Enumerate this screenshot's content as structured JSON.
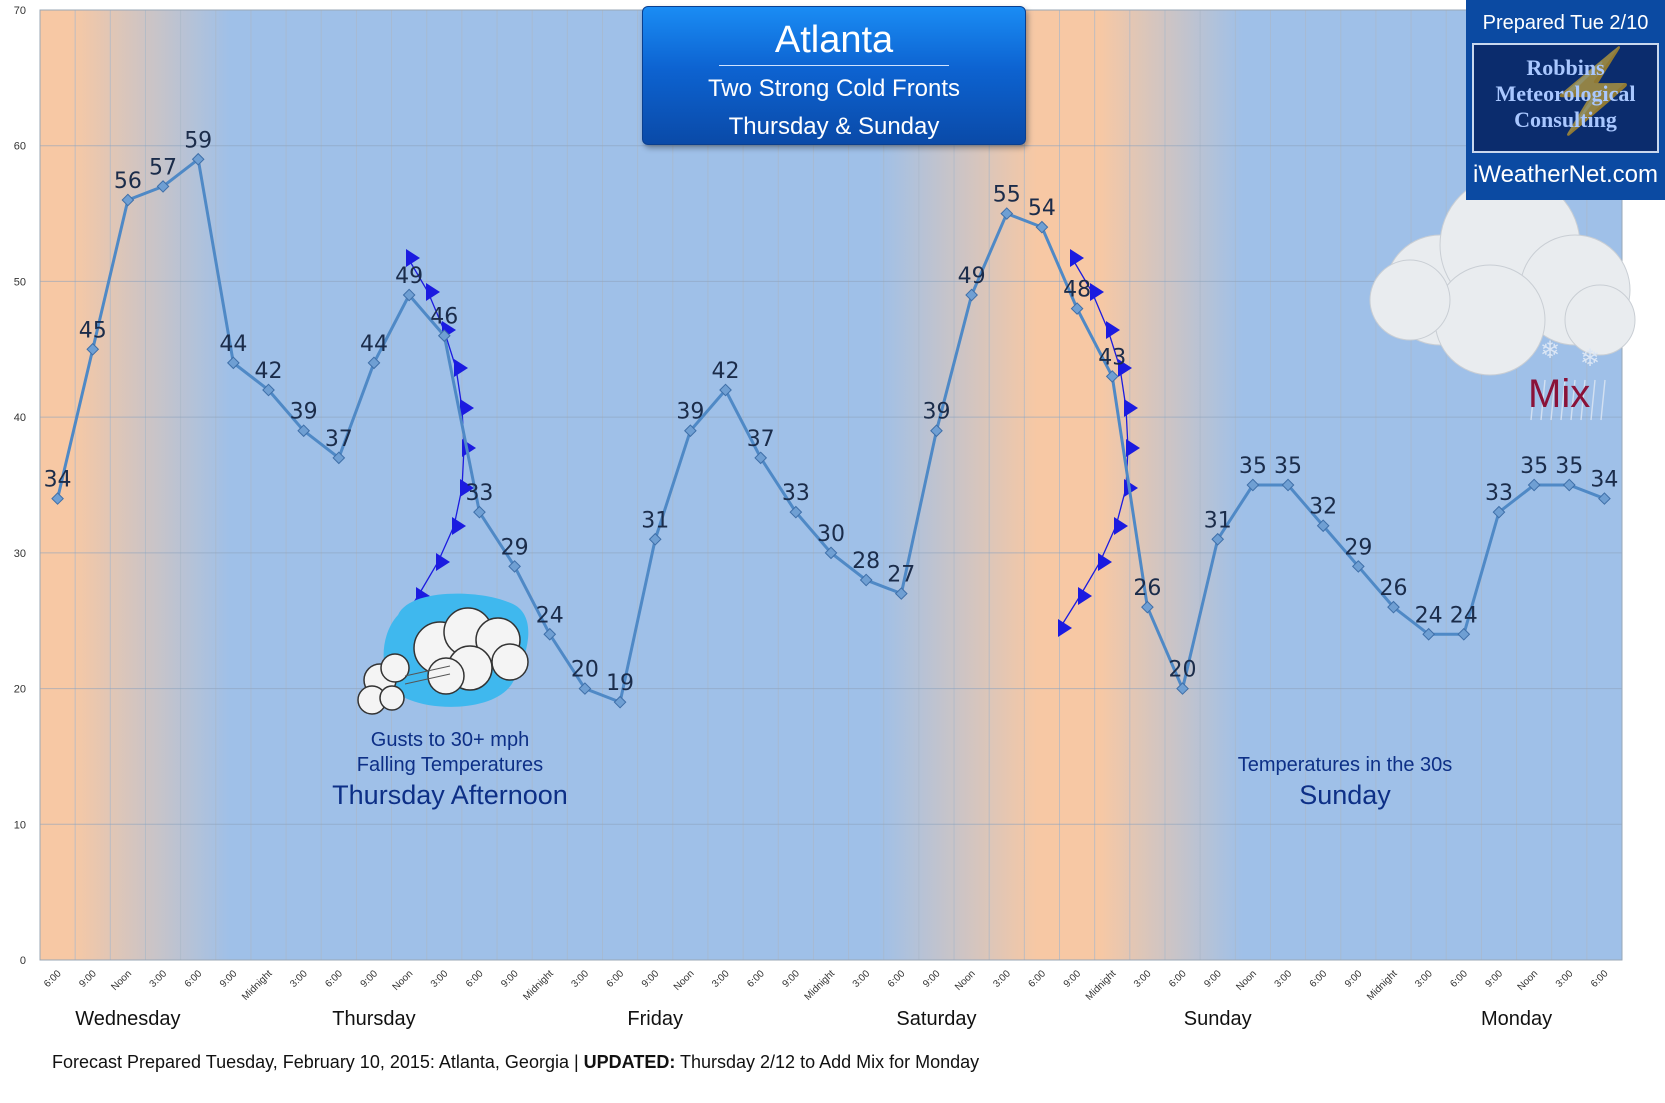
{
  "chart_data": {
    "type": "line",
    "title": "Atlanta",
    "subtitle_lines": [
      "Two Strong Cold Fronts",
      "Thursday & Sunday"
    ],
    "ylim": [
      0,
      70
    ],
    "y_ticks": [
      "0",
      "10",
      "20",
      "30",
      "40",
      "50",
      "60",
      "70"
    ],
    "grid": true,
    "categories": [
      "6:00",
      "9:00",
      "Noon",
      "3:00",
      "6:00",
      "9:00",
      "Midnight",
      "3:00",
      "6:00",
      "9:00",
      "Noon",
      "3:00",
      "6:00",
      "9:00",
      "Midnight",
      "3:00",
      "6:00",
      "9:00",
      "Noon",
      "3:00",
      "6:00",
      "9:00",
      "Midnight",
      "3:00",
      "6:00",
      "9:00",
      "Noon",
      "3:00",
      "6:00",
      "9:00",
      "Midnight",
      "3:00",
      "6:00",
      "9:00",
      "Noon",
      "3:00",
      "6:00",
      "9:00",
      "Midnight",
      "3:00",
      "6:00",
      "9:00",
      "Noon",
      "3:00",
      "6:00"
    ],
    "values": [
      34,
      45,
      56,
      57,
      59,
      44,
      42,
      39,
      37,
      44,
      49,
      46,
      33,
      29,
      24,
      20,
      19,
      31,
      39,
      42,
      37,
      33,
      30,
      28,
      27,
      39,
      49,
      55,
      54,
      48,
      43,
      26,
      20,
      31,
      35,
      35,
      32,
      29,
      26,
      24,
      24,
      33,
      35,
      35,
      34
    ],
    "day_labels": [
      {
        "label": "Wednesday",
        "at_index": 2
      },
      {
        "label": "Thursday",
        "at_index": 9
      },
      {
        "label": "Friday",
        "at_index": 17
      },
      {
        "label": "Saturday",
        "at_index": 25
      },
      {
        "label": "Sunday",
        "at_index": 33
      },
      {
        "label": "Monday",
        "at_index": 41.5
      }
    ],
    "colors": {
      "line": "#4f89c6",
      "marker": "#6f9fd3",
      "label": "#1b2c4a",
      "plot_bg": "#9fc0e8",
      "warm": "#f7c8a4",
      "grid": "#aab8c9",
      "front": "#1b1be0"
    }
  },
  "header": {
    "title": "Atlanta",
    "line2": "Two Strong Cold Fronts",
    "line3": "Thursday & Sunday"
  },
  "brand": {
    "prepared": "Prepared Tue 2/10",
    "name_lines": [
      "Robbins",
      "Meteorological",
      "Consulting"
    ],
    "site": "iWeatherNet.com"
  },
  "annotations": {
    "thursday_line1": "Gusts to 30+ mph",
    "thursday_line2": "Falling Temperatures",
    "thursday_line3": "Thursday Afternoon",
    "sunday_line1": "Temperatures in the 30s",
    "sunday_line2": "Sunday",
    "mix": "Mix"
  },
  "footer": {
    "prefix": "Forecast Prepared Tuesday, February 10, 2015:  Atlanta, Georgia | ",
    "bold": "UPDATED:",
    "suffix": " Thursday 2/12 to Add Mix for Monday"
  }
}
